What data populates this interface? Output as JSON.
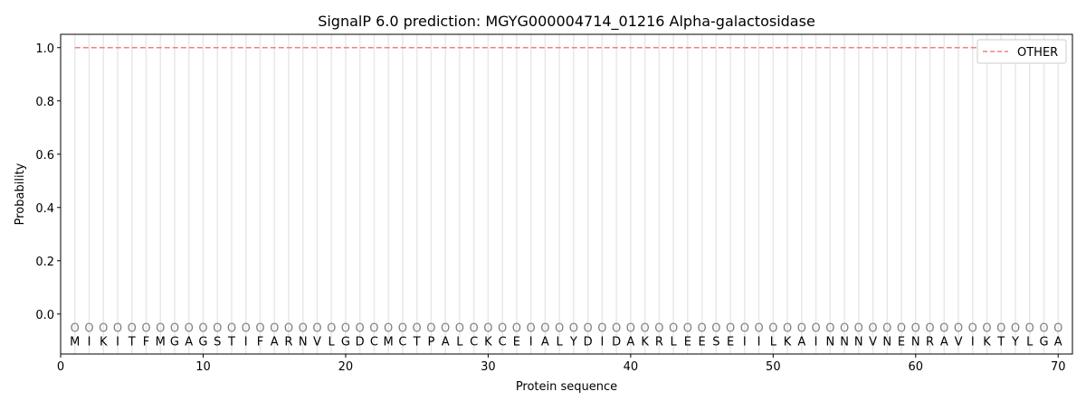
{
  "chart_data": {
    "type": "line",
    "title": "SignalP 6.0 prediction: MGYG000004714_01216 Alpha-galactosidase",
    "xlabel": "Protein sequence",
    "ylabel": "Probability",
    "xlim": [
      0,
      71
    ],
    "ylim": [
      -0.15,
      1.05
    ],
    "xticks": [
      0,
      10,
      20,
      30,
      40,
      50,
      60,
      70
    ],
    "yticks": [
      0.0,
      0.2,
      0.4,
      0.6,
      0.8,
      1.0
    ],
    "ytick_labels": [
      "0.0",
      "0.2",
      "0.4",
      "0.6",
      "0.8",
      "1.0"
    ],
    "grid": "vertical lines at each residue",
    "legend_position": "top-right",
    "sequence": "MIKITFMGAGSTIFARNVLGDCMCTPALCKCEIALYDIDAKRLEESEIILKAINNNVNENRAVIKTYLGA",
    "residue_label": "O",
    "series": [
      {
        "name": "OTHER",
        "color": "#f08080",
        "style": "dashed",
        "x_start": 1,
        "x_end": 70,
        "value": 1.0
      }
    ]
  }
}
